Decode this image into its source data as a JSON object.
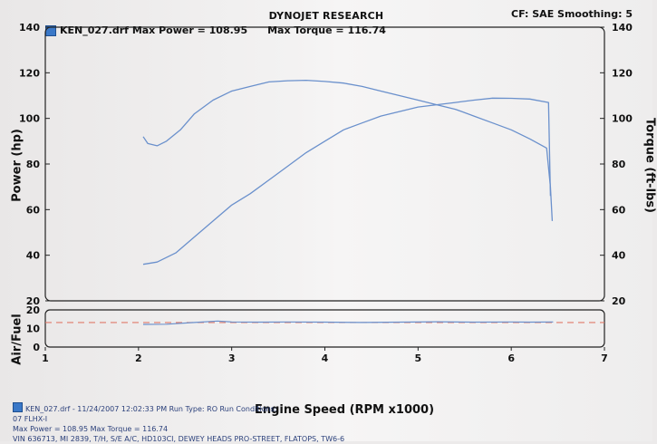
{
  "header": {
    "title": "DYNOJET RESEARCH",
    "settings": "CF: SAE  Smoothing: 5",
    "run_file": "KEN_027.drf",
    "max_power": "Max Power = 108.95",
    "max_torque": "Max Torque = 116.74"
  },
  "axes": {
    "left_label": "Power (hp)",
    "right_label": "Torque (ft-lbs)",
    "af_label": "Air/Fuel",
    "x_label": "Engine Speed (RPM x1000)"
  },
  "footer": {
    "line1": "KEN_027.drf - 11/24/2007 12:02:33 PM  Run Type: RO  Run Conditions:",
    "line2": "07 FLHX-I",
    "line3": "Max Power = 108.95  Max Torque = 116.74",
    "line4": "VIN 636713, MI 2839, T/H, S/E A/C, HD103CI, DEWEY HEADS PRO-STREET, FLATOPS, TW6-6"
  },
  "colors": {
    "series": "#6a90cc",
    "reference": "#e07a6a",
    "swatch": "#3a78c8"
  },
  "chart_data": [
    {
      "type": "line",
      "title": "DYNOJET RESEARCH",
      "xlabel": "Engine Speed (RPM x1000)",
      "ylabel": "Power (hp)",
      "y2label": "Torque (ft-lbs)",
      "xlim": [
        1,
        7
      ],
      "ylim": [
        20,
        140
      ],
      "y2lim": [
        20,
        140
      ],
      "x_ticks": [
        1,
        2,
        3,
        4,
        5,
        6,
        7
      ],
      "y_ticks": [
        20,
        40,
        60,
        80,
        100,
        120,
        140
      ],
      "y2_ticks": [
        20,
        40,
        60,
        80,
        100,
        120,
        140
      ],
      "grid": false,
      "series": [
        {
          "name": "Power",
          "axis": "left",
          "x": [
            2.05,
            2.2,
            2.4,
            2.6,
            2.8,
            3.0,
            3.2,
            3.4,
            3.6,
            3.8,
            4.0,
            4.2,
            4.4,
            4.6,
            4.8,
            5.0,
            5.2,
            5.4,
            5.6,
            5.8,
            6.0,
            6.2,
            6.4,
            6.42
          ],
          "y": [
            36,
            37,
            41,
            48,
            55,
            62,
            67,
            73,
            79,
            85,
            90,
            95,
            98,
            101,
            103,
            105,
            106,
            107,
            108,
            108.9,
            108.8,
            108.5,
            107,
            66
          ]
        },
        {
          "name": "Torque",
          "axis": "right",
          "x": [
            2.05,
            2.1,
            2.2,
            2.3,
            2.45,
            2.6,
            2.8,
            3.0,
            3.2,
            3.4,
            3.6,
            3.8,
            4.0,
            4.2,
            4.4,
            4.6,
            4.8,
            5.0,
            5.2,
            5.4,
            5.6,
            5.8,
            6.0,
            6.2,
            6.38,
            6.42,
            6.44
          ],
          "y": [
            92,
            89,
            88,
            90,
            95,
            102,
            108,
            112,
            114,
            116,
            116.5,
            116.7,
            116.2,
            115.5,
            114,
            112,
            110,
            108,
            106,
            104,
            101,
            98,
            95,
            91,
            87,
            70,
            55
          ]
        }
      ]
    },
    {
      "type": "line",
      "ylabel": "Air/Fuel",
      "xlabel": "Engine Speed (RPM x1000)",
      "xlim": [
        1,
        7
      ],
      "ylim": [
        0,
        20
      ],
      "y_ticks": [
        0,
        10,
        20
      ],
      "reference_line": 13.2,
      "series": [
        {
          "name": "Air/Fuel",
          "x": [
            2.05,
            2.3,
            2.6,
            2.85,
            3.0,
            3.3,
            3.6,
            4.0,
            4.4,
            4.8,
            5.2,
            5.6,
            6.0,
            6.2,
            6.45
          ],
          "y": [
            12.2,
            12.3,
            13.2,
            14.0,
            13.5,
            13.4,
            13.5,
            13.4,
            13.2,
            13.4,
            13.6,
            13.4,
            13.5,
            13.4,
            13.5
          ]
        }
      ]
    }
  ]
}
